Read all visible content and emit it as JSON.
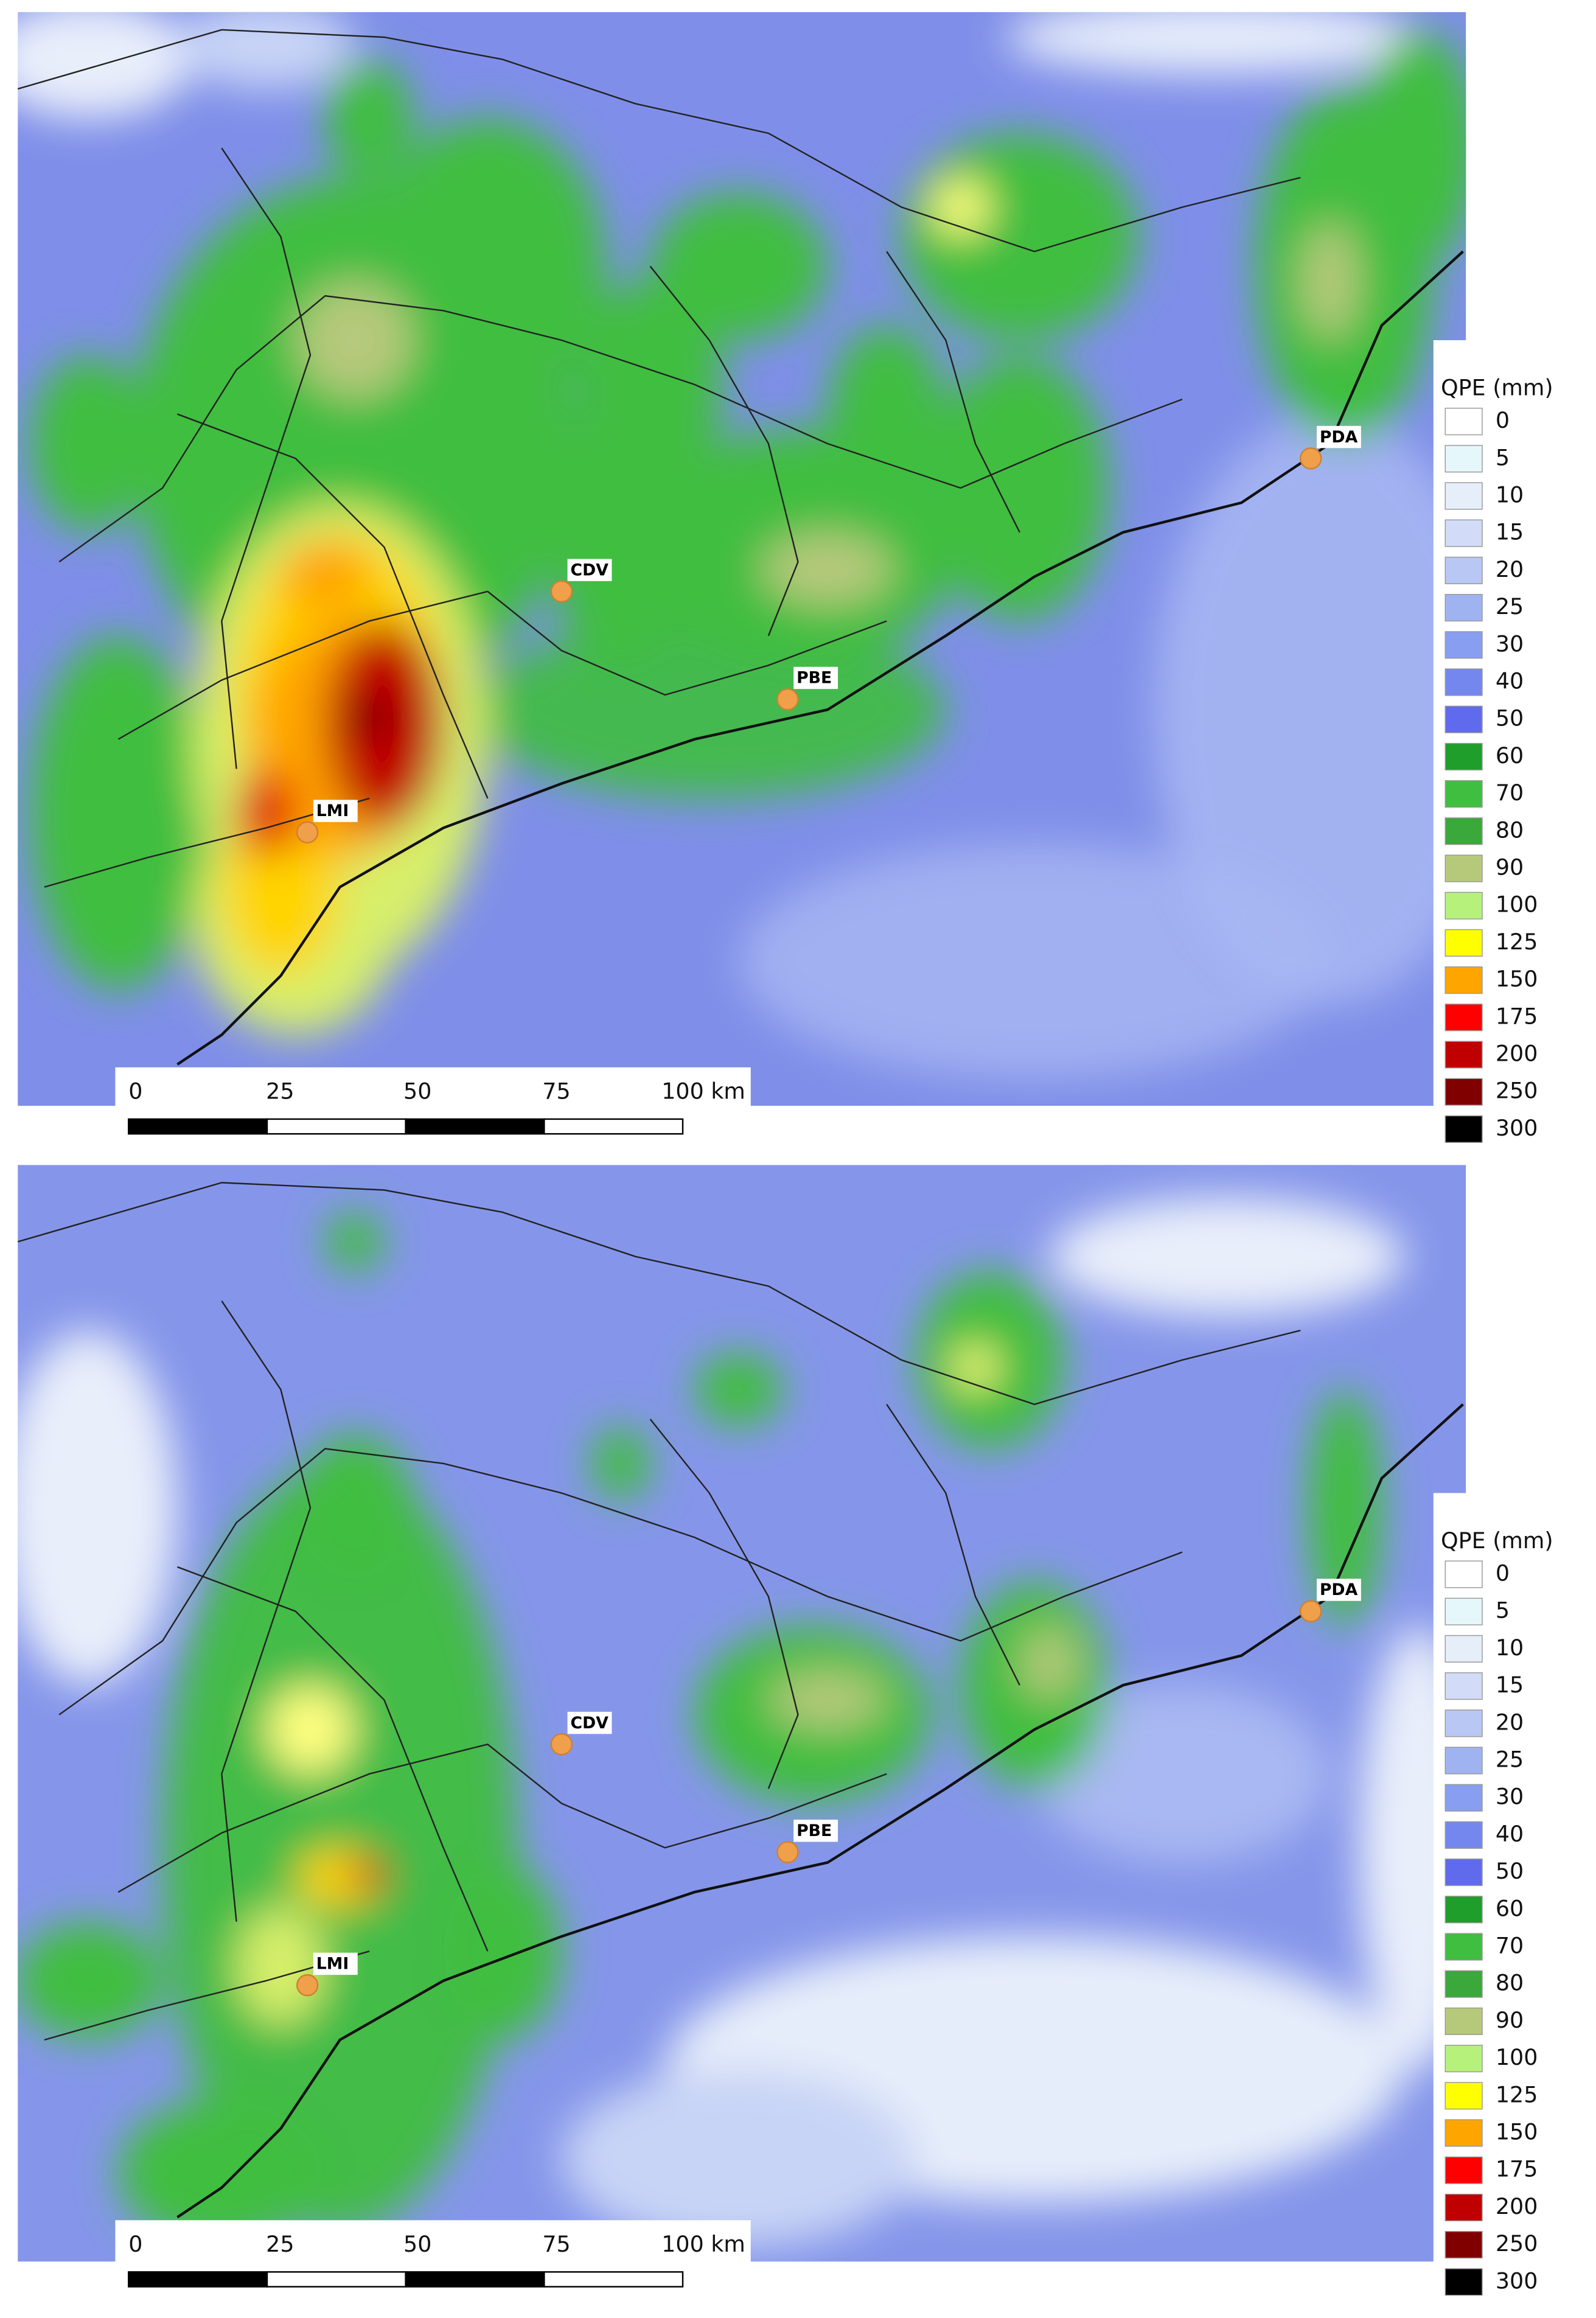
{
  "panels": [
    {
      "stations": [
        "LMI",
        "CDV",
        "PBE",
        "PDA"
      ],
      "scale_bar": [
        "0",
        "25",
        "50",
        "75",
        "100 km"
      ],
      "legend": {
        "title": "QPE (mm)",
        "items": [
          {
            "label": "0",
            "color": "#ffffff"
          },
          {
            "label": "5",
            "color": "#e6f7fb"
          },
          {
            "label": "10",
            "color": "#e6eefa"
          },
          {
            "label": "15",
            "color": "#d2dcf8"
          },
          {
            "label": "20",
            "color": "#b9c7f4"
          },
          {
            "label": "25",
            "color": "#9fb3f1"
          },
          {
            "label": "30",
            "color": "#889ef0"
          },
          {
            "label": "40",
            "color": "#7487ee"
          },
          {
            "label": "50",
            "color": "#5f6bec"
          },
          {
            "label": "60",
            "color": "#1f9e2b"
          },
          {
            "label": "70",
            "color": "#3fbe3f"
          },
          {
            "label": "80",
            "color": "#3aa83a"
          },
          {
            "label": "90",
            "color": "#b6c97b"
          },
          {
            "label": "100",
            "color": "#b6f27b"
          },
          {
            "label": "125",
            "color": "#ffff00"
          },
          {
            "label": "150",
            "color": "#ffa500"
          },
          {
            "label": "175",
            "color": "#ff0000"
          },
          {
            "label": "200",
            "color": "#c00000"
          },
          {
            "label": "250",
            "color": "#800000"
          },
          {
            "label": "300",
            "color": "#000000"
          }
        ]
      }
    },
    {
      "stations": [
        "LMI",
        "CDV",
        "PBE",
        "PDA"
      ],
      "scale_bar": [
        "0",
        "25",
        "50",
        "75",
        "100 km"
      ],
      "legend": {
        "title": "QPE (mm)",
        "items": [
          {
            "label": "0",
            "color": "#ffffff"
          },
          {
            "label": "5",
            "color": "#e6f7fb"
          },
          {
            "label": "10",
            "color": "#e6eefa"
          },
          {
            "label": "15",
            "color": "#d2dcf8"
          },
          {
            "label": "20",
            "color": "#b9c7f4"
          },
          {
            "label": "25",
            "color": "#9fb3f1"
          },
          {
            "label": "30",
            "color": "#889ef0"
          },
          {
            "label": "40",
            "color": "#7487ee"
          },
          {
            "label": "50",
            "color": "#5f6bec"
          },
          {
            "label": "60",
            "color": "#1f9e2b"
          },
          {
            "label": "70",
            "color": "#3fbe3f"
          },
          {
            "label": "80",
            "color": "#3aa83a"
          },
          {
            "label": "90",
            "color": "#b6c97b"
          },
          {
            "label": "100",
            "color": "#b6f27b"
          },
          {
            "label": "125",
            "color": "#ffff00"
          },
          {
            "label": "150",
            "color": "#ffa500"
          },
          {
            "label": "175",
            "color": "#ff0000"
          },
          {
            "label": "200",
            "color": "#c00000"
          },
          {
            "label": "250",
            "color": "#800000"
          },
          {
            "label": "300",
            "color": "#000000"
          }
        ]
      }
    }
  ]
}
